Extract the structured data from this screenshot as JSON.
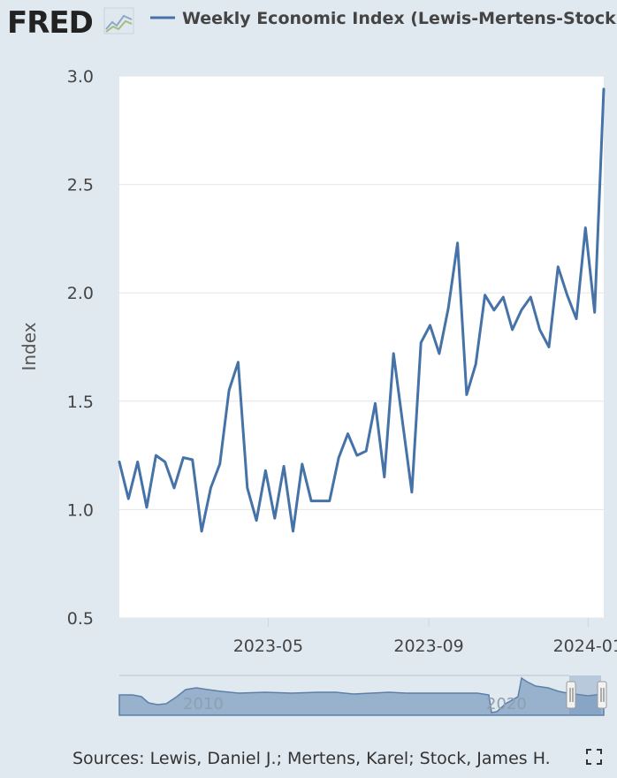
{
  "header": {
    "logo_text": "FRED",
    "logo_icon": "fred-chart-icon"
  },
  "colors": {
    "series": "#4572a7",
    "background": "#e1e9f0",
    "plot_background": "#ffffff",
    "grid": "#e6e6e6",
    "navigator_fill": "#98b1cd",
    "navigator_line": "#5c80a8",
    "navigator_mask": "#6e8fb8"
  },
  "chart_data": {
    "type": "line",
    "title": "",
    "xlabel": "",
    "ylabel": "Index",
    "ylim": [
      0.5,
      3.0
    ],
    "yticks": [
      0.5,
      1.0,
      1.5,
      2.0,
      2.5,
      3.0
    ],
    "ytick_labels": [
      "0.5",
      "1.0",
      "1.5",
      "2.0",
      "2.5",
      "3.0"
    ],
    "xlim": [
      "2023-01-07",
      "2024-01-13"
    ],
    "xticks": [
      "2023-05-01",
      "2023-09-01",
      "2024-01-01"
    ],
    "xtick_labels": [
      "2023-05",
      "2023-09",
      "2024-01"
    ],
    "grid": true,
    "legend_position": "top",
    "series": [
      {
        "name": "Weekly Economic Index (Lewis-Mertens-Stock)",
        "x": [
          "2023-01-07",
          "2023-01-14",
          "2023-01-21",
          "2023-01-28",
          "2023-02-04",
          "2023-02-11",
          "2023-02-18",
          "2023-02-25",
          "2023-03-04",
          "2023-03-11",
          "2023-03-18",
          "2023-03-25",
          "2023-04-01",
          "2023-04-08",
          "2023-04-15",
          "2023-04-22",
          "2023-04-29",
          "2023-05-06",
          "2023-05-13",
          "2023-05-20",
          "2023-05-27",
          "2023-06-03",
          "2023-06-10",
          "2023-06-17",
          "2023-06-24",
          "2023-07-01",
          "2023-07-08",
          "2023-07-15",
          "2023-07-22",
          "2023-07-29",
          "2023-08-05",
          "2023-08-12",
          "2023-08-19",
          "2023-08-26",
          "2023-09-02",
          "2023-09-09",
          "2023-09-16",
          "2023-09-23",
          "2023-09-30",
          "2023-10-07",
          "2023-10-14",
          "2023-10-21",
          "2023-10-28",
          "2023-11-04",
          "2023-11-11",
          "2023-11-18",
          "2023-11-25",
          "2023-12-02",
          "2023-12-09",
          "2023-12-16",
          "2023-12-23",
          "2023-12-30",
          "2024-01-06",
          "2024-01-13"
        ],
        "values": [
          1.22,
          1.05,
          1.22,
          1.01,
          1.25,
          1.22,
          1.1,
          1.24,
          1.23,
          0.9,
          1.1,
          1.21,
          1.55,
          1.68,
          1.1,
          0.95,
          1.18,
          0.96,
          1.2,
          0.9,
          1.21,
          1.04,
          1.04,
          1.04,
          1.24,
          1.35,
          1.25,
          1.27,
          1.49,
          1.15,
          1.72,
          1.4,
          1.08,
          1.77,
          1.85,
          1.72,
          1.93,
          2.23,
          1.53,
          1.67,
          1.99,
          1.92,
          1.98,
          1.83,
          1.92,
          1.98,
          1.83,
          1.75,
          2.12,
          1.99,
          1.88,
          2.3,
          1.91,
          2.94
        ]
      }
    ]
  },
  "navigator": {
    "tick_labels": [
      "2010",
      "2020"
    ]
  },
  "footer": {
    "sources_text": "Sources: Lewis, Daniel J.; Mertens, Karel; Stock, James H.",
    "fullscreen_icon": "fullscreen-icon"
  }
}
